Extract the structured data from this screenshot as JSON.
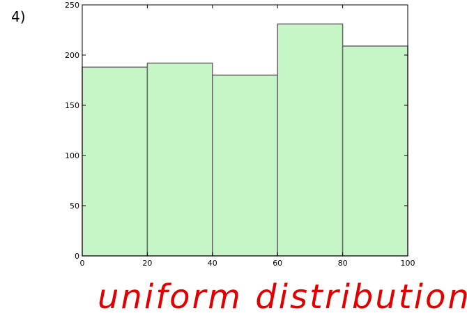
{
  "question_label": "4)",
  "annotation": "uniform distribution",
  "chart_data": {
    "type": "bar",
    "title": "",
    "xlabel": "",
    "ylabel": "",
    "bins": [
      [
        0,
        20
      ],
      [
        20,
        40
      ],
      [
        40,
        60
      ],
      [
        60,
        80
      ],
      [
        80,
        100
      ]
    ],
    "values": [
      188,
      192,
      180,
      231,
      209
    ],
    "xlim": [
      0,
      100
    ],
    "ylim": [
      0,
      250
    ],
    "xticks": [
      0,
      20,
      40,
      60,
      80,
      100
    ],
    "yticks": [
      0,
      50,
      100,
      150,
      200,
      250
    ],
    "grid": false,
    "bar_color": "#c6f5c6",
    "edge_color": "#666666"
  }
}
